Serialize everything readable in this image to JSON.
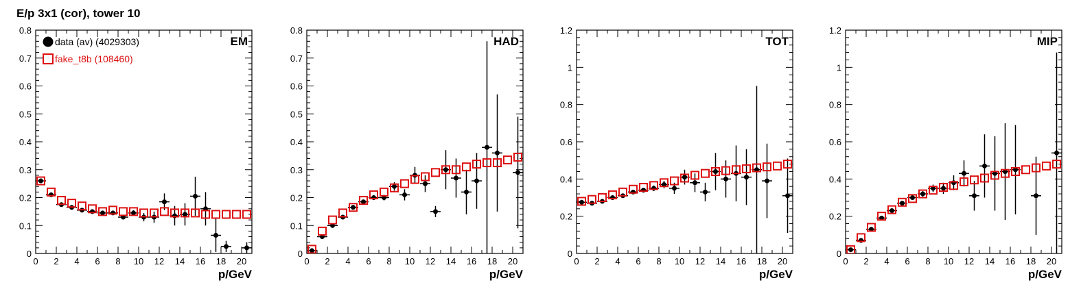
{
  "figure": {
    "title": "E/p 3x1 (cor), tower 10",
    "legend": {
      "data_label": "data (av) (4029303)",
      "mc_label": "fake_t8b (108460)"
    }
  },
  "colors": {
    "data": "#000000",
    "mc": "#dd1111"
  },
  "chart_data": [
    {
      "type": "scatter",
      "panel_label": "EM",
      "xlabel": "p/GeV",
      "xlim": [
        0,
        21
      ],
      "ylim": [
        0,
        0.8
      ],
      "xticks": [
        0,
        2,
        4,
        6,
        8,
        10,
        12,
        14,
        16,
        18,
        20
      ],
      "yticks": [
        0,
        0.1,
        0.2,
        0.3,
        0.4,
        0.5,
        0.6,
        0.7,
        0.8
      ],
      "series": [
        {
          "name": "data (av) (4029303)",
          "marker": "filled-circle",
          "x": [
            0.5,
            1.5,
            2.5,
            3.5,
            4.5,
            5.5,
            6.5,
            7.5,
            8.5,
            9.5,
            10.5,
            11.5,
            12.5,
            13.5,
            14.5,
            15.5,
            16.5,
            17.5,
            18.5,
            20.5
          ],
          "y": [
            0.26,
            0.21,
            0.175,
            0.165,
            0.155,
            0.15,
            0.145,
            0.145,
            0.13,
            0.145,
            0.13,
            0.13,
            0.185,
            0.135,
            0.14,
            0.205,
            0.16,
            0.065,
            0.025,
            0.02
          ],
          "err": [
            0.005,
            0.005,
            0.005,
            0.005,
            0.005,
            0.005,
            0.005,
            0.005,
            0.008,
            0.01,
            0.015,
            0.02,
            0.03,
            0.035,
            0.04,
            0.07,
            0.06,
            0.06,
            0.02,
            0.02
          ]
        },
        {
          "name": "fake_t8b (108460)",
          "marker": "open-square",
          "x": [
            0.5,
            1.5,
            2.5,
            3.5,
            4.5,
            5.5,
            6.5,
            7.5,
            8.5,
            9.5,
            10.5,
            11.5,
            12.5,
            13.5,
            14.5,
            15.5,
            16.5,
            17.5,
            18.5,
            19.5,
            20.5
          ],
          "y": [
            0.26,
            0.22,
            0.19,
            0.18,
            0.17,
            0.16,
            0.15,
            0.155,
            0.15,
            0.15,
            0.145,
            0.145,
            0.15,
            0.145,
            0.145,
            0.145,
            0.14,
            0.14,
            0.14,
            0.14,
            0.14
          ]
        }
      ]
    },
    {
      "type": "scatter",
      "panel_label": "HAD",
      "xlabel": "p/GeV",
      "xlim": [
        0,
        21
      ],
      "ylim": [
        0,
        0.8
      ],
      "xticks": [
        0,
        2,
        4,
        6,
        8,
        10,
        12,
        14,
        16,
        18,
        20
      ],
      "yticks": [
        0,
        0.1,
        0.2,
        0.3,
        0.4,
        0.5,
        0.6,
        0.7,
        0.8
      ],
      "series": [
        {
          "name": "data (av) (4029303)",
          "marker": "filled-circle",
          "x": [
            0.5,
            1.5,
            2.5,
            3.5,
            4.5,
            5.5,
            6.5,
            7.5,
            8.5,
            9.5,
            10.5,
            11.5,
            12.5,
            13.5,
            14.5,
            15.5,
            16.5,
            17.5,
            18.5,
            20.5
          ],
          "y": [
            0.01,
            0.06,
            0.1,
            0.13,
            0.165,
            0.185,
            0.2,
            0.2,
            0.24,
            0.21,
            0.28,
            0.25,
            0.15,
            0.3,
            0.27,
            0.22,
            0.26,
            0.38,
            0.36,
            0.29
          ],
          "err": [
            0.003,
            0.005,
            0.005,
            0.005,
            0.005,
            0.005,
            0.008,
            0.01,
            0.015,
            0.02,
            0.03,
            0.03,
            0.02,
            0.07,
            0.07,
            0.08,
            0.1,
            0.38,
            0.21,
            0.2
          ]
        },
        {
          "name": "fake_t8b (108460)",
          "marker": "open-square",
          "x": [
            0.5,
            1.5,
            2.5,
            3.5,
            4.5,
            5.5,
            6.5,
            7.5,
            8.5,
            9.5,
            10.5,
            11.5,
            12.5,
            13.5,
            14.5,
            15.5,
            16.5,
            17.5,
            18.5,
            19.5,
            20.5
          ],
          "y": [
            0.015,
            0.08,
            0.12,
            0.145,
            0.165,
            0.19,
            0.21,
            0.22,
            0.235,
            0.25,
            0.265,
            0.275,
            0.29,
            0.3,
            0.3,
            0.31,
            0.32,
            0.325,
            0.325,
            0.335,
            0.345
          ]
        }
      ]
    },
    {
      "type": "scatter",
      "panel_label": "TOT",
      "xlabel": "p/GeV",
      "xlim": [
        0,
        21
      ],
      "ylim": [
        0,
        1.2
      ],
      "xticks": [
        0,
        2,
        4,
        6,
        8,
        10,
        12,
        14,
        16,
        18,
        20
      ],
      "yticks": [
        0,
        0.2,
        0.4,
        0.6,
        0.8,
        1,
        1.2
      ],
      "series": [
        {
          "name": "data (av) (4029303)",
          "marker": "filled-circle",
          "x": [
            0.5,
            1.5,
            2.5,
            3.5,
            4.5,
            5.5,
            6.5,
            7.5,
            8.5,
            9.5,
            10.5,
            11.5,
            12.5,
            13.5,
            14.5,
            15.5,
            16.5,
            17.5,
            18.5,
            20.5
          ],
          "y": [
            0.275,
            0.27,
            0.28,
            0.3,
            0.31,
            0.33,
            0.34,
            0.35,
            0.37,
            0.35,
            0.41,
            0.38,
            0.33,
            0.44,
            0.4,
            0.43,
            0.41,
            0.45,
            0.39,
            0.31
          ],
          "err": [
            0.01,
            0.01,
            0.01,
            0.01,
            0.01,
            0.01,
            0.01,
            0.015,
            0.02,
            0.03,
            0.04,
            0.05,
            0.05,
            0.1,
            0.1,
            0.15,
            0.15,
            0.45,
            0.2,
            0.2
          ]
        },
        {
          "name": "fake_t8b (108460)",
          "marker": "open-square",
          "x": [
            0.5,
            1.5,
            2.5,
            3.5,
            4.5,
            5.5,
            6.5,
            7.5,
            8.5,
            9.5,
            10.5,
            11.5,
            12.5,
            13.5,
            14.5,
            15.5,
            16.5,
            17.5,
            18.5,
            19.5,
            20.5
          ],
          "y": [
            0.28,
            0.29,
            0.3,
            0.315,
            0.33,
            0.345,
            0.355,
            0.365,
            0.38,
            0.39,
            0.405,
            0.42,
            0.43,
            0.44,
            0.445,
            0.45,
            0.455,
            0.46,
            0.465,
            0.47,
            0.48
          ]
        }
      ]
    },
    {
      "type": "scatter",
      "panel_label": "MIP",
      "xlabel": "p/GeV",
      "xlim": [
        0,
        21
      ],
      "ylim": [
        0,
        1.2
      ],
      "xticks": [
        0,
        2,
        4,
        6,
        8,
        10,
        12,
        14,
        16,
        18,
        20
      ],
      "yticks": [
        0,
        0.2,
        0.4,
        0.6,
        0.8,
        1,
        1.2
      ],
      "series": [
        {
          "name": "data (av) (4029303)",
          "marker": "filled-circle",
          "x": [
            0.5,
            1.5,
            2.5,
            3.5,
            4.5,
            5.5,
            6.5,
            7.5,
            8.5,
            9.5,
            10.5,
            11.5,
            12.5,
            13.5,
            14.5,
            15.5,
            16.5,
            18.5,
            20.5
          ],
          "y": [
            0.02,
            0.07,
            0.13,
            0.19,
            0.23,
            0.27,
            0.3,
            0.32,
            0.35,
            0.35,
            0.38,
            0.43,
            0.31,
            0.47,
            0.43,
            0.44,
            0.45,
            0.31,
            0.54
          ],
          "err": [
            0.005,
            0.005,
            0.005,
            0.005,
            0.01,
            0.01,
            0.01,
            0.015,
            0.02,
            0.03,
            0.04,
            0.07,
            0.08,
            0.17,
            0.2,
            0.26,
            0.24,
            0.21,
            0.54
          ]
        },
        {
          "name": "fake_t8b (108460)",
          "marker": "open-square",
          "x": [
            0.5,
            1.5,
            2.5,
            3.5,
            4.5,
            5.5,
            6.5,
            7.5,
            8.5,
            9.5,
            10.5,
            11.5,
            12.5,
            13.5,
            14.5,
            15.5,
            16.5,
            17.5,
            18.5,
            19.5,
            20.5
          ],
          "y": [
            0.02,
            0.085,
            0.14,
            0.2,
            0.235,
            0.275,
            0.295,
            0.32,
            0.34,
            0.355,
            0.365,
            0.385,
            0.395,
            0.405,
            0.42,
            0.43,
            0.44,
            0.45,
            0.46,
            0.47,
            0.48
          ]
        }
      ]
    }
  ]
}
